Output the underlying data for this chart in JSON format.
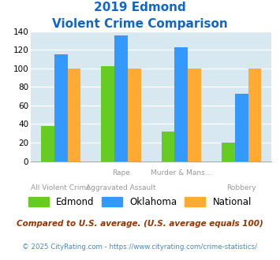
{
  "title_line1": "2019 Edmond",
  "title_line2": "Violent Crime Comparison",
  "cat_labels_top": [
    "",
    "Rape",
    "Murder & Mans...",
    ""
  ],
  "cat_labels_bot": [
    "All Violent Crime",
    "Aggravated Assault",
    "",
    "Robbery"
  ],
  "edmond": [
    38,
    102,
    32,
    20
  ],
  "oklahoma": [
    115,
    135,
    123,
    73
  ],
  "national": [
    100,
    100,
    100,
    100
  ],
  "color_edmond": "#66cc22",
  "color_oklahoma": "#3399ff",
  "color_national": "#ffaa33",
  "ylim": [
    0,
    140
  ],
  "yticks": [
    0,
    20,
    40,
    60,
    80,
    100,
    120,
    140
  ],
  "bg_color": "#d8e8f0",
  "legend_labels": [
    "Edmond",
    "Oklahoma",
    "National"
  ],
  "footnote1": "Compared to U.S. average. (U.S. average equals 100)",
  "footnote2": "© 2025 CityRating.com - https://www.cityrating.com/crime-statistics/",
  "title_color": "#1166cc",
  "footnote1_color": "#993300",
  "footnote2_color": "#4488cc"
}
